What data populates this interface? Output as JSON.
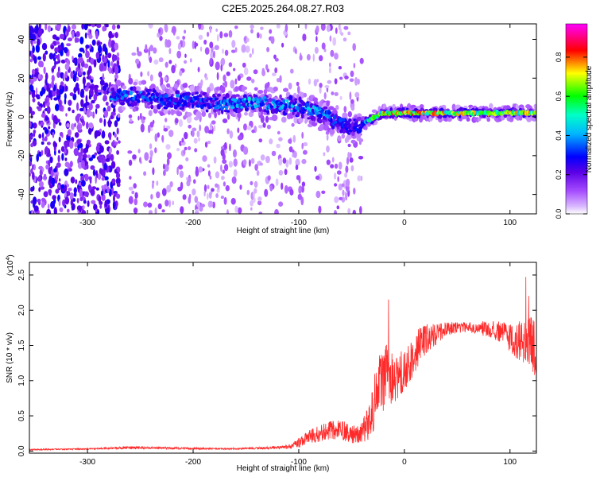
{
  "title": "C2E5.2025.264.08.27.R03",
  "chart_data": [
    {
      "type": "heatmap",
      "xlabel": "Height of straight line (km)",
      "ylabel": "Frequency (Hz)",
      "xlim": [
        -355,
        125
      ],
      "ylim": [
        -50,
        48
      ],
      "xticks": [
        -300,
        -200,
        -100,
        0,
        100
      ],
      "yticks": [
        -40,
        -20,
        0,
        20,
        40
      ],
      "colorbar": {
        "label": "Normalized spectral amplitude",
        "range": [
          0.0,
          0.97
        ],
        "ticks": [
          0.0,
          0.2,
          0.4,
          0.6,
          0.8
        ],
        "colormap": "rainbow",
        "colors": [
          "#ffffff",
          "#b57cff",
          "#6000e0",
          "#0000ff",
          "#00ffff",
          "#00ff00",
          "#ffff00",
          "#ff0000",
          "#ff00ff"
        ]
      },
      "ridge": {
        "x": [
          -275,
          -250,
          -225,
          -200,
          -175,
          -150,
          -125,
          -100,
          -80,
          -60,
          -45,
          -35,
          -20,
          0,
          40,
          80,
          125
        ],
        "frequency": [
          11,
          10,
          9,
          8,
          7,
          7,
          7,
          5,
          2,
          -3,
          -6,
          -2,
          2,
          2,
          2,
          2,
          2
        ],
        "peak_amplitude": [
          0.4,
          0.4,
          0.4,
          0.35,
          0.4,
          0.5,
          0.45,
          0.45,
          0.45,
          0.35,
          0.3,
          0.6,
          0.8,
          0.9,
          0.8,
          0.75,
          0.8
        ]
      },
      "noise_region": {
        "x_range": [
          -355,
          -270
        ],
        "y_range": [
          -50,
          48
        ],
        "amplitude": 0.25
      },
      "grid": false
    },
    {
      "type": "line",
      "xlabel": "Height of straight line (km)",
      "ylabel": "SNR (10 * v/v)",
      "multiplier": "(x10",
      "multiplier_exp": "4",
      "xlim": [
        -355,
        125
      ],
      "ylim": [
        -0.03,
        2.68
      ],
      "xticks": [
        -300,
        -200,
        -100,
        0,
        100
      ],
      "yticks": [
        0.0,
        0.5,
        1.0,
        1.5,
        2.0,
        2.5
      ],
      "ytick_labels": [
        "0.0",
        "0.5",
        "1.0",
        "1.5",
        "2.0",
        "2.5"
      ],
      "series": [
        {
          "color": "#ff2a2a",
          "x": [
            -355,
            -300,
            -260,
            -220,
            -170,
            -140,
            -120,
            -110,
            -100,
            -90,
            -80,
            -70,
            -60,
            -50,
            -40,
            -30,
            -25,
            -20,
            -15,
            -10,
            0,
            10,
            20,
            30,
            40,
            50,
            60,
            70,
            80,
            90,
            100,
            105,
            110,
            115,
            120,
            125
          ],
          "values": [
            0.02,
            0.03,
            0.05,
            0.04,
            0.03,
            0.04,
            0.05,
            0.06,
            0.12,
            0.2,
            0.25,
            0.3,
            0.3,
            0.25,
            0.25,
            0.55,
            1.0,
            0.95,
            1.15,
            1.0,
            1.15,
            1.4,
            1.6,
            1.65,
            1.75,
            1.75,
            1.75,
            1.75,
            1.72,
            1.7,
            1.6,
            1.5,
            1.6,
            1.55,
            1.5,
            1.45
          ],
          "noise": [
            0.01,
            0.01,
            0.02,
            0.015,
            0.01,
            0.015,
            0.02,
            0.03,
            0.07,
            0.1,
            0.12,
            0.13,
            0.14,
            0.14,
            0.15,
            0.35,
            0.4,
            0.45,
            0.45,
            0.35,
            0.3,
            0.3,
            0.22,
            0.15,
            0.1,
            0.08,
            0.08,
            0.1,
            0.12,
            0.15,
            0.2,
            0.25,
            0.3,
            0.35,
            0.4,
            0.4
          ]
        }
      ],
      "grid": false
    }
  ]
}
